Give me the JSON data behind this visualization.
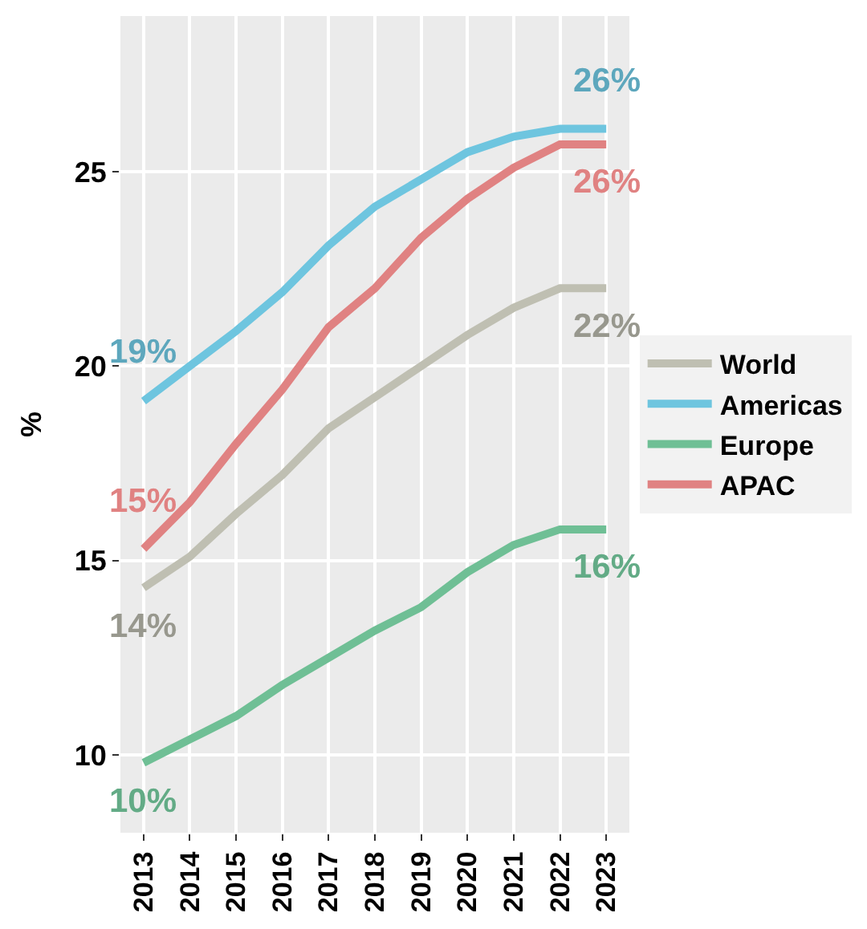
{
  "chart_data": {
    "type": "line",
    "ylabel": "%",
    "categories": [
      "2013",
      "2014",
      "2015",
      "2016",
      "2017",
      "2018",
      "2019",
      "2020",
      "2021",
      "2022",
      "2023"
    ],
    "series": [
      {
        "name": "World",
        "color": "#bfbfb2",
        "values": [
          14.3,
          15.1,
          16.2,
          17.2,
          18.4,
          19.2,
          20.0,
          20.8,
          21.5,
          22.0,
          22.0
        ]
      },
      {
        "name": "Americas",
        "color": "#6ec5df",
        "values": [
          19.1,
          20.0,
          20.9,
          21.9,
          23.1,
          24.1,
          24.8,
          25.5,
          25.9,
          26.1,
          26.1
        ]
      },
      {
        "name": "Europe",
        "color": "#6fbf95",
        "values": [
          9.8,
          10.4,
          11.0,
          11.8,
          12.5,
          13.2,
          13.8,
          14.7,
          15.4,
          15.8,
          15.8
        ]
      },
      {
        "name": "APAC",
        "color": "#e08282",
        "values": [
          15.3,
          16.5,
          18.0,
          19.4,
          21.0,
          22.0,
          23.3,
          24.3,
          25.1,
          25.7,
          25.7
        ]
      }
    ],
    "annotations": [
      {
        "text": "19%",
        "x": "2013",
        "y": 19.1
      },
      {
        "text": "15%",
        "x": "2013",
        "y": 15.3
      },
      {
        "text": "14%",
        "x": "2013",
        "y": 14.3
      },
      {
        "text": "10%",
        "x": "2013",
        "y": 9.8
      },
      {
        "text": "26%",
        "x": "2023",
        "y": 26.1
      },
      {
        "text": "26%",
        "x": "2023",
        "y": 25.7
      },
      {
        "text": "22%",
        "x": "2023",
        "y": 22.0
      },
      {
        "text": "16%",
        "x": "2023",
        "y": 15.8
      }
    ],
    "ylim": [
      8,
      29
    ],
    "yticks": [
      10,
      15,
      20,
      25
    ],
    "grid": true,
    "legend": "right",
    "marker": "none",
    "line_style": "solid"
  }
}
